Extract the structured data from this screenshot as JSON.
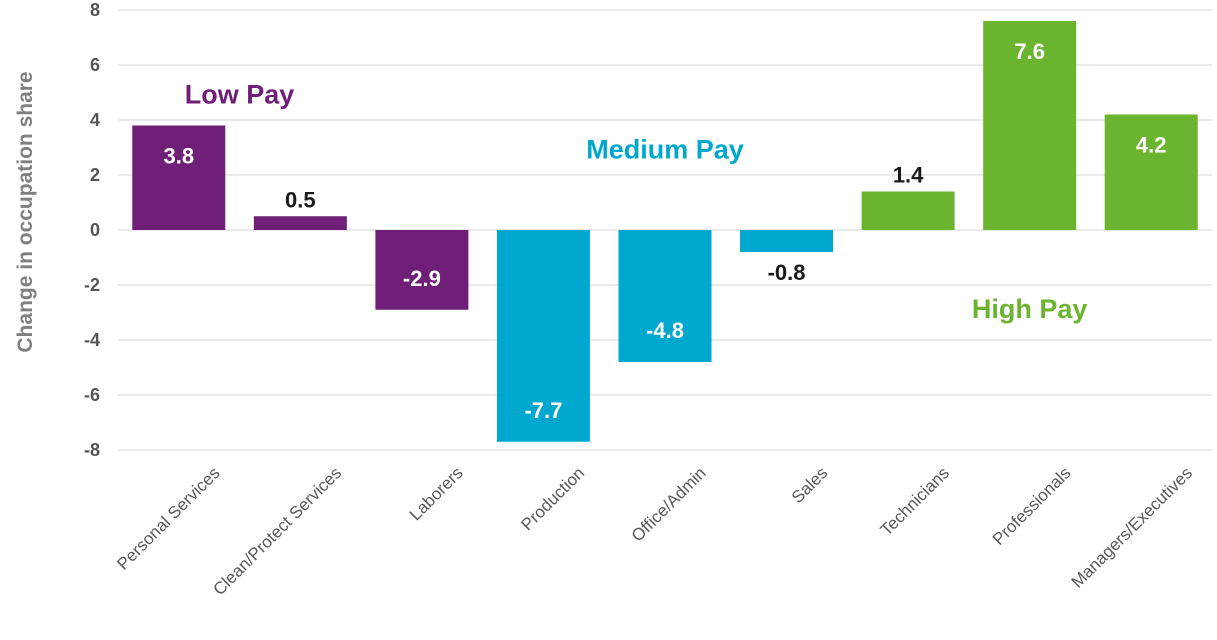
{
  "chart_data": {
    "type": "bar",
    "categories": [
      "Personal Services",
      "Clean/Protect Services",
      "Laborers",
      "Production",
      "Office/Admin",
      "Sales",
      "Technicians",
      "Professionals",
      "Managers/Executives"
    ],
    "values": [
      3.8,
      0.5,
      -2.9,
      -7.7,
      -4.8,
      -0.8,
      1.4,
      7.6,
      4.2
    ],
    "value_labels": [
      "3.8",
      "0.5",
      "-2.9",
      "-7.7",
      "-4.8",
      "-0.8",
      "1.4",
      "7.6",
      "4.2"
    ],
    "bar_groups": [
      "low",
      "low",
      "low",
      "medium",
      "medium",
      "medium",
      "high",
      "high",
      "high"
    ],
    "groups": {
      "low": {
        "label": "Low Pay",
        "color": "#6f1f77"
      },
      "medium": {
        "label": "Medium Pay",
        "color": "#00a8cf"
      },
      "high": {
        "label": "High Pay",
        "color": "#6bb42f"
      }
    },
    "ylabel": "Change in occupation share",
    "xlabel": "",
    "title": "",
    "ylim": [
      -8,
      8
    ],
    "yticks": [
      8,
      6,
      4,
      2,
      0,
      -2,
      -4,
      -6,
      -8
    ],
    "grid": true,
    "legend": "none"
  }
}
